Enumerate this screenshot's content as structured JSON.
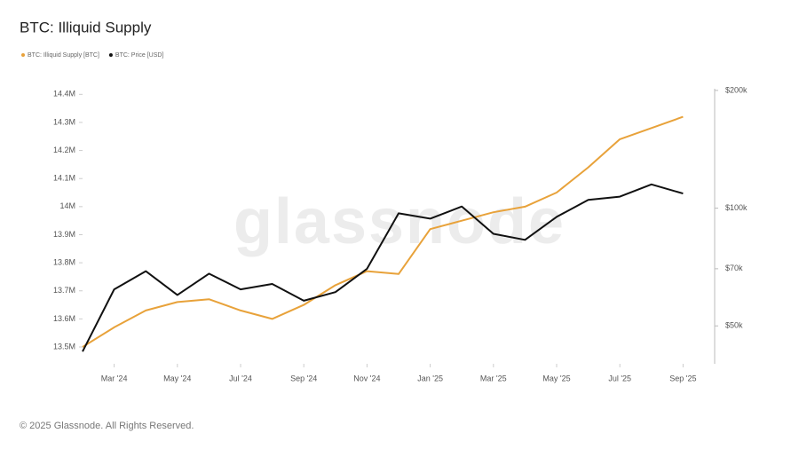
{
  "chart_data": {
    "type": "line",
    "title": "BTC: Illiquid Supply",
    "watermark": "glassnode",
    "footer": "© 2025 Glassnode. All Rights Reserved.",
    "x": [
      "2024-02",
      "2024-03",
      "2024-04",
      "2024-05",
      "2024-06",
      "2024-07",
      "2024-08",
      "2024-09",
      "2024-10",
      "2024-11",
      "2024-12",
      "2025-01",
      "2025-02",
      "2025-03",
      "2025-04",
      "2025-05",
      "2025-06",
      "2025-07",
      "2025-08",
      "2025-09"
    ],
    "xlim": [
      "2024-02",
      "2025-10"
    ],
    "xticks": [
      {
        "value": "2024-03",
        "label": "Mar '24"
      },
      {
        "value": "2024-05",
        "label": "May '24"
      },
      {
        "value": "2024-07",
        "label": "Jul '24"
      },
      {
        "value": "2024-09",
        "label": "Sep '24"
      },
      {
        "value": "2024-11",
        "label": "Nov '24"
      },
      {
        "value": "2025-01",
        "label": "Jan '25"
      },
      {
        "value": "2025-03",
        "label": "Mar '25"
      },
      {
        "value": "2025-05",
        "label": "May '25"
      },
      {
        "value": "2025-07",
        "label": "Jul '25"
      },
      {
        "value": "2025-09",
        "label": "Sep '25"
      }
    ],
    "ylim": [
      13440000,
      14420000
    ],
    "yticks": [
      {
        "value": 13500000,
        "label": "13.5M"
      },
      {
        "value": 13600000,
        "label": "13.6M"
      },
      {
        "value": 13700000,
        "label": "13.7M"
      },
      {
        "value": 13800000,
        "label": "13.8M"
      },
      {
        "value": 13900000,
        "label": "13.9M"
      },
      {
        "value": 14000000,
        "label": "14M"
      },
      {
        "value": 14100000,
        "label": "14.1M"
      },
      {
        "value": 14200000,
        "label": "14.2M"
      },
      {
        "value": 14300000,
        "label": "14.3M"
      },
      {
        "value": 14400000,
        "label": "14.4M"
      }
    ],
    "y2lim": [
      40000,
      202000
    ],
    "y2log": true,
    "y2ticks": [
      {
        "value": 50000,
        "label": "$50k"
      },
      {
        "value": 70000,
        "label": "$70k"
      },
      {
        "value": 100000,
        "label": "$100k"
      },
      {
        "value": 200000,
        "label": "$200k"
      }
    ],
    "series": [
      {
        "name": "BTC: Illiquid Supply [BTC]",
        "color": "#e8a23a",
        "values": [
          13500000,
          13570000,
          13630000,
          13660000,
          13670000,
          13630000,
          13600000,
          13650000,
          13720000,
          13770000,
          13760000,
          13920000,
          13950000,
          13980000,
          14000000,
          14050000,
          14140000,
          14240000,
          14280000,
          14320000
        ]
      },
      {
        "name": "BTC: Price [USD]",
        "color": "#111111",
        "axis": "y2",
        "values": [
          43000,
          62000,
          69000,
          60000,
          68000,
          62000,
          64000,
          58000,
          61000,
          70000,
          97000,
          94000,
          101000,
          86000,
          83000,
          95000,
          105000,
          107000,
          115000,
          109000
        ]
      }
    ]
  }
}
